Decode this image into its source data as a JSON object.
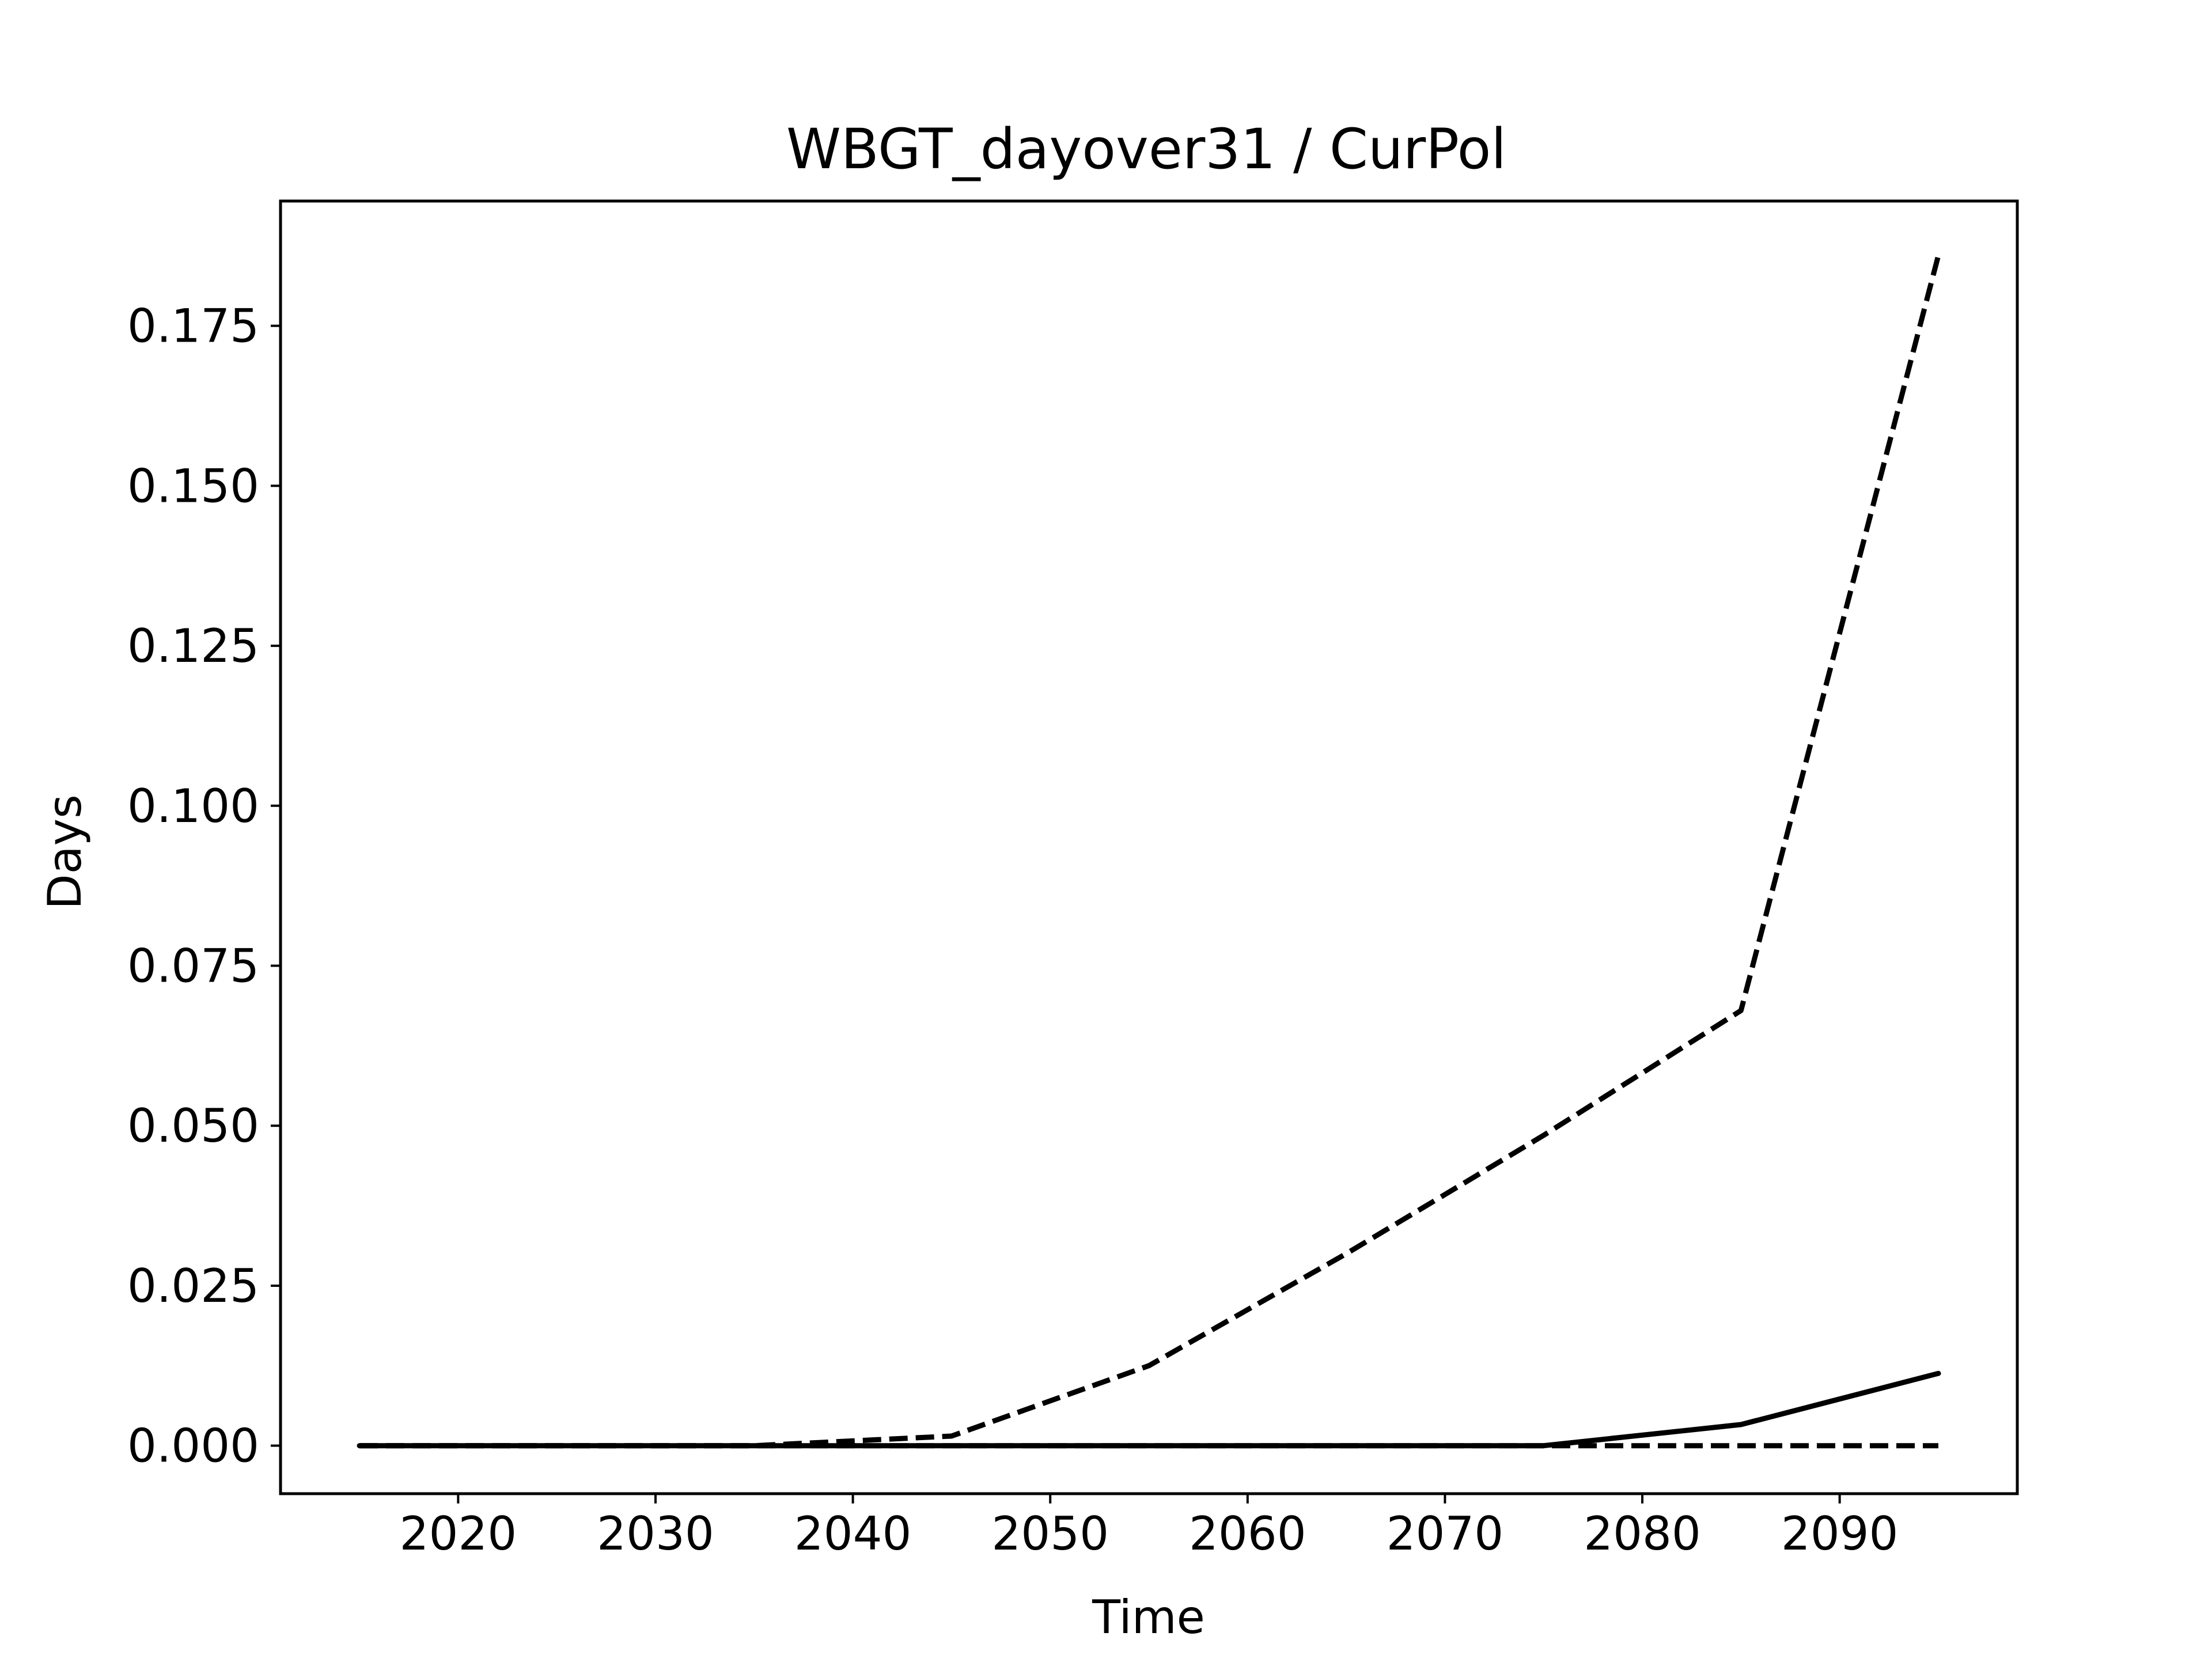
{
  "chart_data": {
    "type": "line",
    "title": "WBGT_dayover31 / CurPol",
    "xlabel": "Time",
    "ylabel": "Days",
    "xlim": [
      2011,
      2099
    ],
    "ylim": [
      -0.0075,
      0.1945
    ],
    "x_ticks": [
      2020,
      2030,
      2040,
      2050,
      2060,
      2070,
      2080,
      2090
    ],
    "y_ticks": [
      0.0,
      0.025,
      0.05,
      0.075,
      0.1,
      0.125,
      0.15,
      0.175
    ],
    "x_tick_labels": [
      "2020",
      "2030",
      "2040",
      "2050",
      "2060",
      "2070",
      "2080",
      "2090"
    ],
    "y_tick_labels": [
      "0.000",
      "0.025",
      "0.050",
      "0.075",
      "0.100",
      "0.125",
      "0.150",
      "0.175"
    ],
    "grid": false,
    "legend": false,
    "x": [
      2015,
      2025,
      2035,
      2045,
      2055,
      2065,
      2075,
      2085,
      2095
    ],
    "series": [
      {
        "style": "dashed",
        "color": "#000000",
        "values": [
          0.0,
          0.0,
          0.0,
          0.0015,
          0.0125,
          0.03,
          0.0485,
          0.068,
          0.186
        ]
      },
      {
        "style": "solid",
        "color": "#000000",
        "values": [
          0.0,
          0.0,
          0.0,
          0.0,
          0.0,
          0.0,
          0.0,
          0.0033,
          0.0113
        ]
      },
      {
        "style": "dashed",
        "color": "#000000",
        "values": [
          0.0,
          0.0,
          0.0,
          0.0,
          0.0,
          0.0,
          0.0,
          0.0,
          0.0
        ]
      }
    ]
  }
}
